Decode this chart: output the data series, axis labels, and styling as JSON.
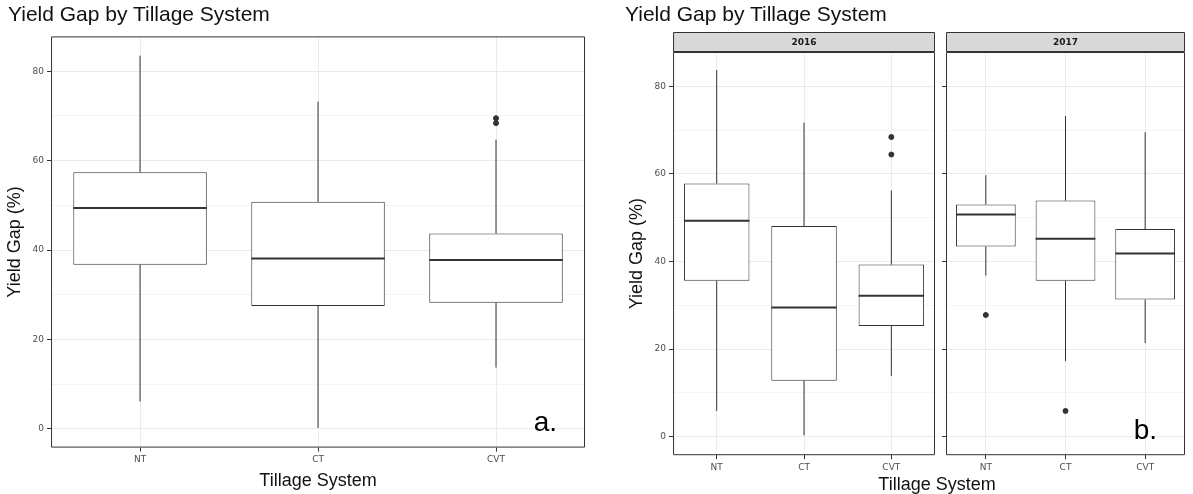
{
  "chart_data": [
    {
      "type": "box",
      "title": "Yield Gap by Tillage System",
      "xlabel": "Tillage System",
      "ylabel": "Yield Gap (%)",
      "categories": [
        "NT",
        "CT",
        "CVT"
      ],
      "color": "#333333",
      "ylim": [
        -4.2,
        87.8
      ],
      "yticks": [
        0,
        {
          "value": 10,
          "label": null
        },
        20,
        {
          "value": 30,
          "label": null
        },
        40,
        {
          "value": 50,
          "label": null
        },
        60,
        {
          "value": 70,
          "label": null
        },
        80
      ],
      "grid": true,
      "annotations": [
        "a."
      ],
      "boxes": [
        {
          "low": 6.1,
          "q1": 36.7,
          "median": 49.4,
          "q3": 57.4,
          "high": 83.5
        },
        {
          "low": 0.2,
          "q1": 27.5,
          "median": 38.1,
          "q3": 50.8,
          "high": 73.2
        },
        {
          "low": 13.7,
          "q1": 28.2,
          "median": 37.8,
          "q3": 43.7,
          "high": 64.7,
          "outliers": [
            68.4,
            69.5
          ]
        }
      ]
    },
    {
      "type": "box",
      "title": "Yield Gap by Tillage System",
      "subtitle": "2016",
      "xlabel": "Tillage System",
      "ylabel": "Yield Gap (%)",
      "categories": [
        "NT",
        "CT",
        "CVT"
      ],
      "color": "#333333",
      "ylim": [
        -4.2,
        87.8
      ],
      "yticks": [
        0,
        {
          "value": 10,
          "label": null
        },
        20,
        {
          "value": 30,
          "label": null
        },
        40,
        {
          "value": 50,
          "label": null
        },
        60,
        {
          "value": 70,
          "label": null
        },
        80
      ],
      "grid": true,
      "boxes": [
        {
          "low": 5.9,
          "q1": 35.6,
          "median": 49.3,
          "q3": 57.8,
          "high": 83.7
        },
        {
          "low": 0.3,
          "q1": 12.8,
          "median": 29.5,
          "q3": 48.1,
          "high": 71.7
        },
        {
          "low": 13.9,
          "q1": 25.3,
          "median": 32.2,
          "q3": 39.3,
          "high": 56.2,
          "outliers": [
            64.4,
            68.4
          ]
        }
      ]
    },
    {
      "type": "box",
      "subtitle": "2017",
      "categories": [
        "NT",
        "CT",
        "CVT"
      ],
      "color": "#333333",
      "ylim": [
        -4.2,
        87.8
      ],
      "yticks": [
        0,
        {
          "value": 10,
          "label": null
        },
        20,
        {
          "value": 30,
          "label": null
        },
        40,
        {
          "value": 50,
          "label": null
        },
        60,
        {
          "value": 70,
          "label": null
        },
        80
      ],
      "grid": true,
      "tick_labels": "x",
      "annotations": [
        "b."
      ],
      "boxes": [
        {
          "low": 36.8,
          "q1": 43.4,
          "median": 50.7,
          "q3": 53.0,
          "high": 59.7,
          "outliers": [
            27.8
          ]
        },
        {
          "low": 17.3,
          "q1": 35.6,
          "median": 45.2,
          "q3": 53.9,
          "high": 73.2,
          "outliers": [
            5.9
          ]
        },
        {
          "low": 21.4,
          "q1": 31.3,
          "median": 41.8,
          "q3": 47.4,
          "high": 69.5
        }
      ]
    }
  ]
}
